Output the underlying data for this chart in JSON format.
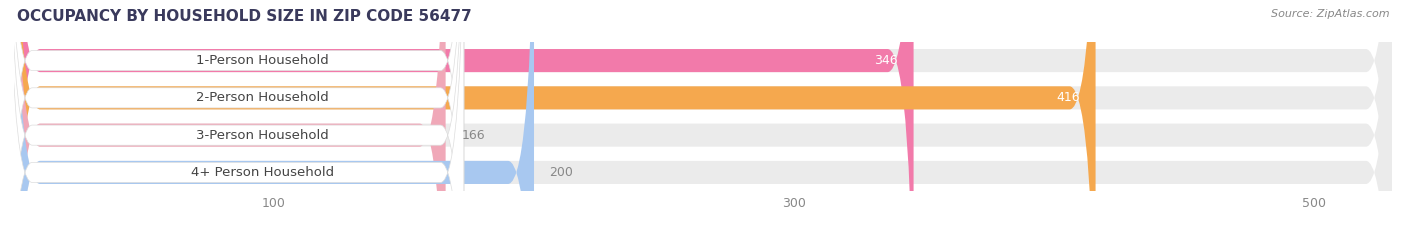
{
  "title": "OCCUPANCY BY HOUSEHOLD SIZE IN ZIP CODE 56477",
  "source": "Source: ZipAtlas.com",
  "categories": [
    "1-Person Household",
    "2-Person Household",
    "3-Person Household",
    "4+ Person Household"
  ],
  "values": [
    346,
    416,
    166,
    200
  ],
  "bar_colors": [
    "#f27aaa",
    "#f5a84e",
    "#f0a8b8",
    "#a8c8f0"
  ],
  "bg_color": "#f0f0f0",
  "fig_bg": "#ffffff",
  "xlim_min": 0,
  "xlim_max": 530,
  "xticks": [
    100,
    300,
    500
  ],
  "bar_height": 0.62,
  "bar_gap": 1.0,
  "figsize": [
    14.06,
    2.33
  ],
  "dpi": 100,
  "label_fontsize": 9.5,
  "value_fontsize": 9,
  "title_fontsize": 11,
  "source_fontsize": 8
}
